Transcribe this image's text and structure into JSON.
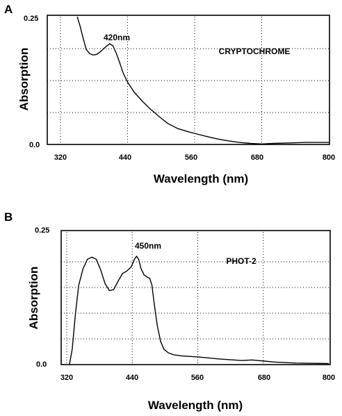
{
  "chart_data": [
    {
      "panel": "A",
      "type": "line",
      "xlabel": "Wavelength (nm)",
      "ylabel": "Absorption",
      "xlim": [
        320,
        800
      ],
      "ylim": [
        0,
        0.25
      ],
      "xticks": [
        "320",
        "440",
        "560",
        "680",
        "800"
      ],
      "yticks": [
        "0.0",
        "0.25"
      ],
      "grid": true,
      "annotations": [
        {
          "text": "420nm",
          "x": 426,
          "y": 0.213
        },
        {
          "text": "CRYPTOCHROME",
          "x": 668,
          "y": 0.19
        }
      ],
      "series": [
        {
          "x": [
            350,
            355,
            360,
            366,
            372,
            378,
            384,
            390,
            396,
            402,
            408,
            414,
            420,
            426,
            432,
            440,
            452,
            466,
            480,
            496,
            512,
            530,
            548,
            562,
            580,
            600,
            620,
            640,
            660,
            680,
            700,
            730,
            760,
            800
          ],
          "y": [
            0.25,
            0.232,
            0.21,
            0.186,
            0.178,
            0.175,
            0.176,
            0.18,
            0.186,
            0.192,
            0.197,
            0.193,
            0.178,
            0.16,
            0.14,
            0.122,
            0.102,
            0.085,
            0.07,
            0.055,
            0.041,
            0.031,
            0.025,
            0.021,
            0.016,
            0.011,
            0.007,
            0.004,
            0.002,
            0.001,
            0.002,
            0.003,
            0.004,
            0.004
          ]
        }
      ]
    },
    {
      "panel": "B",
      "type": "line",
      "xlabel": "Wavelength (nm)",
      "ylabel": "Absorption",
      "xlim": [
        320,
        800
      ],
      "ylim": [
        0,
        0.25
      ],
      "xticks": [
        "320",
        "440",
        "560",
        "680",
        "800"
      ],
      "yticks": [
        "0.0",
        "0.25"
      ],
      "grid": true,
      "annotations": [
        {
          "text": "450nm",
          "x": 466,
          "y": 0.215
        },
        {
          "text": "PHOT-2",
          "x": 603,
          "y": 0.196
        }
      ],
      "series": [
        {
          "x": [
            325,
            330,
            336,
            342,
            350,
            358,
            366,
            374,
            382,
            390,
            398,
            406,
            414,
            422,
            430,
            438,
            444,
            448,
            452,
            456,
            462,
            468,
            472,
            476,
            480,
            486,
            492,
            498,
            506,
            516,
            530,
            560,
            600,
            640,
            660,
            700,
            740,
            800
          ],
          "y": [
            0.0,
            0.03,
            0.1,
            0.155,
            0.187,
            0.205,
            0.209,
            0.205,
            0.185,
            0.158,
            0.144,
            0.146,
            0.162,
            0.177,
            0.182,
            0.19,
            0.205,
            0.211,
            0.204,
            0.187,
            0.174,
            0.17,
            0.168,
            0.155,
            0.12,
            0.075,
            0.045,
            0.03,
            0.023,
            0.019,
            0.017,
            0.015,
            0.011,
            0.008,
            0.009,
            0.005,
            0.003,
            0.002
          ]
        }
      ]
    }
  ]
}
